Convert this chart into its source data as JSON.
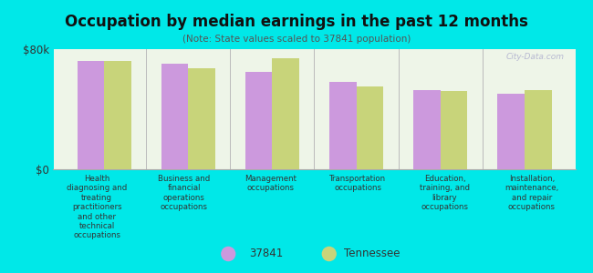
{
  "title": "Occupation by median earnings in the past 12 months",
  "subtitle": "(Note: State values scaled to 37841 population)",
  "background_color": "#00e8e8",
  "plot_background_color": "#eef5e8",
  "categories": [
    "Health\ndiagnosing and\ntreating\npractitioners\nand other\ntechnical\noccupations",
    "Business and\nfinancial\noperations\noccupations",
    "Management\noccupations",
    "Transportation\noccupations",
    "Education,\ntraining, and\nlibrary\noccupations",
    "Installation,\nmaintenance,\nand repair\noccupations"
  ],
  "values_37841": [
    72000,
    70000,
    65000,
    58000,
    53000,
    50000
  ],
  "values_tennessee": [
    72000,
    67000,
    74000,
    55000,
    52000,
    53000
  ],
  "color_37841": "#cc99dd",
  "color_tennessee": "#c8d47a",
  "ylim": [
    0,
    80000
  ],
  "yticks": [
    0,
    80000
  ],
  "ytick_labels": [
    "$0",
    "$80k"
  ],
  "legend_label_37841": "37841",
  "legend_label_tennessee": "Tennessee",
  "watermark": "City-Data.com"
}
